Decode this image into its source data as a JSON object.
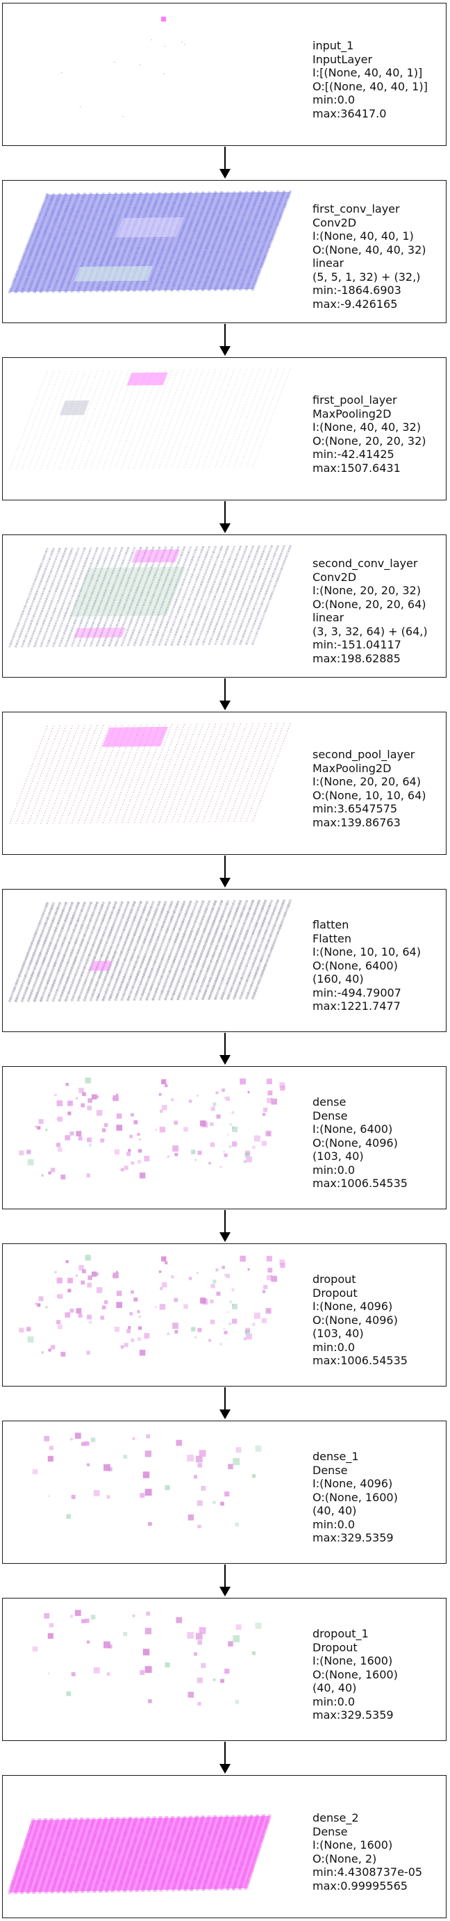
{
  "layers": [
    {
      "id": "input_1",
      "viz": "input",
      "lines": [
        "input_1",
        "InputLayer",
        "I:[(None, 40, 40, 1)]",
        "O:[(None, 40, 40, 1)]",
        "min:0.0",
        "max:36417.0"
      ]
    },
    {
      "id": "first_conv_layer",
      "viz": "blue-plane",
      "lines": [
        "first_conv_layer",
        "Conv2D",
        "I:(None, 40, 40, 1)",
        "O:(None, 40, 40, 32)",
        "linear",
        "(5, 5, 1, 32) + (32,)",
        "min:-1864.6903",
        "max:-9.426165"
      ]
    },
    {
      "id": "first_pool_layer",
      "viz": "sparse-plane",
      "lines": [
        "first_pool_layer",
        "MaxPooling2D",
        "I:(None, 40, 40, 32)",
        "O:(None, 20, 20, 32)",
        "min:-42.41425",
        "max:1507.6431"
      ]
    },
    {
      "id": "second_conv_layer",
      "viz": "green-plane",
      "lines": [
        "second_conv_layer",
        "Conv2D",
        "I:(None, 20, 20, 32)",
        "O:(None, 20, 20, 64)",
        "linear",
        "(3, 3, 32, 64) + (64,)",
        "min:-151.04117",
        "max:198.62885"
      ]
    },
    {
      "id": "second_pool_layer",
      "viz": "dotted-plane",
      "lines": [
        "second_pool_layer",
        "MaxPooling2D",
        "I:(None, 20, 20, 64)",
        "O:(None, 10, 10, 64)",
        "min:3.6547575",
        "max:139.86763"
      ]
    },
    {
      "id": "flatten",
      "viz": "gray-plane",
      "lines": [
        "flatten",
        "Flatten",
        "I:(None, 10, 10, 64)",
        "O:(None, 6400)",
        "(160, 40)",
        "min:-494.79007",
        "max:1221.7477"
      ]
    },
    {
      "id": "dense",
      "viz": "scatter-dense",
      "lines": [
        "dense",
        "Dense",
        "I:(None, 6400)",
        "O:(None, 4096)",
        "(103, 40)",
        "min:0.0",
        "max:1006.54535"
      ]
    },
    {
      "id": "dropout",
      "viz": "scatter-dense",
      "lines": [
        "dropout",
        "Dropout",
        "I:(None, 4096)",
        "O:(None, 4096)",
        "(103, 40)",
        "min:0.0",
        "max:1006.54535"
      ]
    },
    {
      "id": "dense_1",
      "viz": "scatter-sparse",
      "lines": [
        "dense_1",
        "Dense",
        "I:(None, 4096)",
        "O:(None, 1600)",
        "(40, 40)",
        "min:0.0",
        "max:329.5359"
      ]
    },
    {
      "id": "dropout_1",
      "viz": "scatter-sparse",
      "lines": [
        "dropout_1",
        "Dropout",
        "I:(None, 1600)",
        "O:(None, 1600)",
        "(40, 40)",
        "min:0.0",
        "max:329.5359"
      ]
    },
    {
      "id": "dense_2",
      "viz": "magenta-plane",
      "lines": [
        "dense_2",
        "Dense",
        "I:(None, 1600)",
        "O:(None, 2)",
        "min:4.4308737e-05",
        "max:0.99995565"
      ]
    }
  ],
  "colors": {
    "border": "#1a1a1a",
    "blue": "#a8a8f0",
    "magenta": "#ff7cff",
    "pink": "#e9a6e9",
    "gray": "#9a9ab0",
    "green": "#9cc8a8",
    "arrow": "#000000"
  }
}
